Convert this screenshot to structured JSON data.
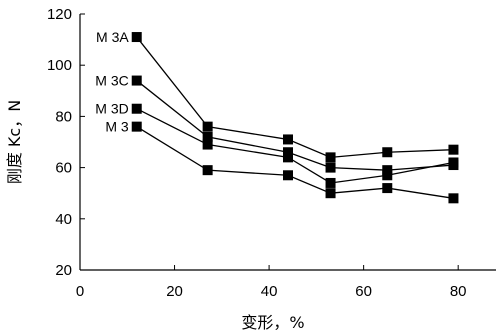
{
  "chart_data": {
    "type": "line",
    "title": "",
    "xlabel": "变形，%",
    "ylabel": "刚度 Kc，N",
    "xlim": [
      0,
      88
    ],
    "ylim": [
      20,
      120
    ],
    "xticks": [
      0,
      20,
      40,
      60,
      80
    ],
    "yticks": [
      20,
      40,
      60,
      80,
      100,
      120
    ],
    "grid": false,
    "legend": "inline-left",
    "marker": "square",
    "series": [
      {
        "name": "M 3A",
        "x": [
          12,
          27,
          44,
          53,
          65,
          79
        ],
        "y": [
          111,
          76,
          71,
          64,
          66,
          67
        ]
      },
      {
        "name": "M 3C",
        "x": [
          12,
          27,
          44,
          53,
          65,
          79
        ],
        "y": [
          94,
          72,
          66,
          60,
          59,
          61
        ]
      },
      {
        "name": "M 3D",
        "x": [
          12,
          27,
          44,
          53,
          65,
          79
        ],
        "y": [
          83,
          69,
          64,
          54,
          57,
          62
        ]
      },
      {
        "name": "M 3",
        "x": [
          12,
          27,
          44,
          53,
          65,
          79
        ],
        "y": [
          76,
          59,
          57,
          50,
          52,
          48
        ]
      }
    ]
  }
}
